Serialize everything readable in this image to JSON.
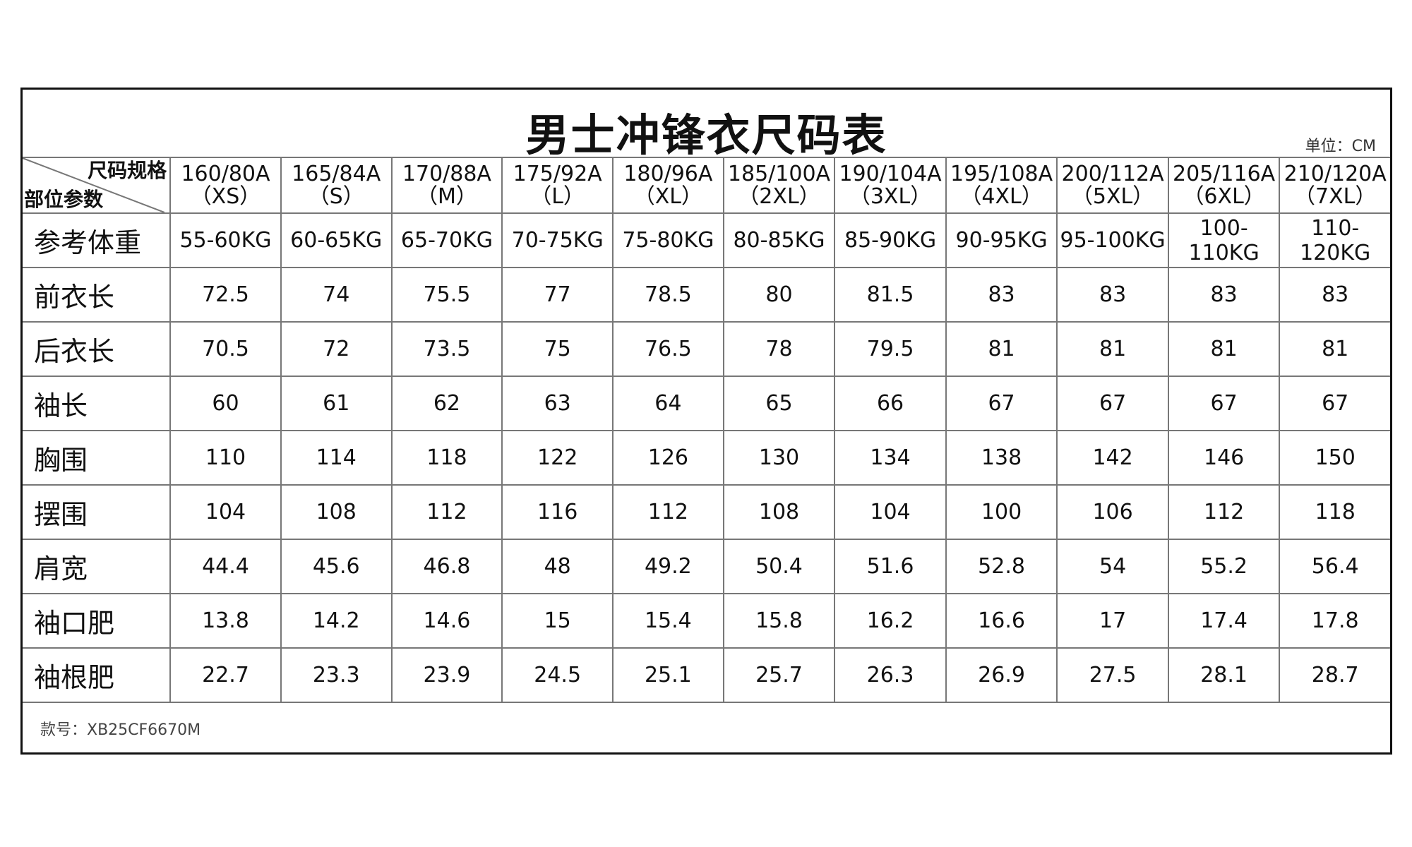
{
  "title": "男士冲锋衣尺码表",
  "unit": "单位：CM",
  "corner": {
    "top": "尺码规格",
    "bottom": "部位参数"
  },
  "sizes": [
    {
      "code": "160/80A",
      "label": "（XS）"
    },
    {
      "code": "165/84A",
      "label": "（S）"
    },
    {
      "code": "170/88A",
      "label": "（M）"
    },
    {
      "code": "175/92A",
      "label": "（L）"
    },
    {
      "code": "180/96A",
      "label": "（XL）"
    },
    {
      "code": "185/100A",
      "label": "（2XL）"
    },
    {
      "code": "190/104A",
      "label": "（3XL）"
    },
    {
      "code": "195/108A",
      "label": "（4XL）"
    },
    {
      "code": "200/112A",
      "label": "（5XL）"
    },
    {
      "code": "205/116A",
      "label": "（6XL）"
    },
    {
      "code": "210/120A",
      "label": "（7XL）"
    }
  ],
  "rows": [
    {
      "label": "参考体重",
      "values": [
        "55-60KG",
        "60-65KG",
        "65-70KG",
        "70-75KG",
        "75-80KG",
        "80-85KG",
        "85-90KG",
        "90-95KG",
        "95-100KG",
        "100-110KG",
        "110-120KG"
      ]
    },
    {
      "label": "前衣长",
      "values": [
        "72.5",
        "74",
        "75.5",
        "77",
        "78.5",
        "80",
        "81.5",
        "83",
        "83",
        "83",
        "83"
      ]
    },
    {
      "label": "后衣长",
      "values": [
        "70.5",
        "72",
        "73.5",
        "75",
        "76.5",
        "78",
        "79.5",
        "81",
        "81",
        "81",
        "81"
      ]
    },
    {
      "label": "袖长",
      "values": [
        "60",
        "61",
        "62",
        "63",
        "64",
        "65",
        "66",
        "67",
        "67",
        "67",
        "67"
      ]
    },
    {
      "label": "胸围",
      "values": [
        "110",
        "114",
        "118",
        "122",
        "126",
        "130",
        "134",
        "138",
        "142",
        "146",
        "150"
      ]
    },
    {
      "label": "摆围",
      "values": [
        "104",
        "108",
        "112",
        "116",
        "112",
        "108",
        "104",
        "100",
        "106",
        "112",
        "118"
      ]
    },
    {
      "label": "肩宽",
      "values": [
        "44.4",
        "45.6",
        "46.8",
        "48",
        "49.2",
        "50.4",
        "51.6",
        "52.8",
        "54",
        "55.2",
        "56.4"
      ]
    },
    {
      "label": "袖口肥",
      "values": [
        "13.8",
        "14.2",
        "14.6",
        "15",
        "15.4",
        "15.8",
        "16.2",
        "16.6",
        "17",
        "17.4",
        "17.8"
      ]
    },
    {
      "label": "袖根肥",
      "values": [
        "22.7",
        "23.3",
        "23.9",
        "24.5",
        "25.1",
        "25.7",
        "26.3",
        "26.9",
        "27.5",
        "28.1",
        "28.7"
      ]
    }
  ],
  "footer": "款号：XB25CF6670M"
}
